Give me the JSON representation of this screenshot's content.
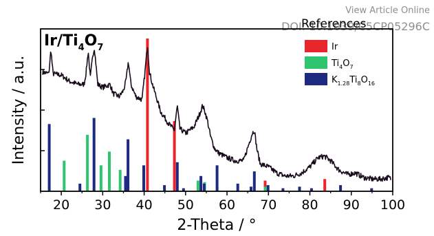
{
  "watermark": {
    "line1": "View Article Online",
    "line2": "DOI: 10.1039/C5CP05296C"
  },
  "chart_data": {
    "type": "line",
    "title": "Ir/Ti4O7",
    "xlabel": "2-Theta / °",
    "ylabel": "Intensity / a.u.",
    "xlim": [
      15,
      100
    ],
    "xticks": [
      20,
      30,
      40,
      50,
      60,
      70,
      80,
      90,
      100
    ],
    "ylim": [
      0,
      1
    ],
    "grid": false,
    "legend": {
      "title": "References",
      "placement": "top-right",
      "entries": [
        {
          "name": "Ir",
          "color": "#e8262b"
        },
        {
          "name": "Ti4O7",
          "color": "#2ec56e"
        },
        {
          "name": "K1.28Ti8O16",
          "color": "#1d2a80"
        }
      ]
    },
    "pattern": {
      "name": "Ir/Ti4O7",
      "color": "#1a0a1e",
      "x": [
        15.5,
        17,
        17.5,
        18,
        20,
        22,
        24,
        25.5,
        26,
        26.5,
        27,
        27.6,
        28,
        28.8,
        30,
        31.8,
        32.5,
        34,
        35,
        35.6,
        36.2,
        36.8,
        38,
        39.5,
        40.2,
        40.8,
        41.3,
        42,
        44,
        46,
        47.3,
        48,
        48.6,
        50,
        52,
        53.3,
        54.1,
        54.7,
        55.3,
        56,
        57,
        58,
        60,
        62,
        64,
        66.1,
        66.6,
        67.2,
        68,
        70,
        72,
        74,
        76,
        78,
        80,
        82,
        83.5,
        85,
        87,
        89,
        91,
        93,
        95,
        97,
        99,
        99.6
      ],
      "y": [
        0.78,
        0.77,
        0.93,
        0.77,
        0.76,
        0.72,
        0.7,
        0.7,
        0.78,
        0.92,
        0.74,
        0.89,
        0.94,
        0.7,
        0.68,
        0.7,
        0.64,
        0.62,
        0.66,
        0.72,
        0.85,
        0.7,
        0.62,
        0.6,
        0.78,
        0.96,
        0.78,
        0.7,
        0.52,
        0.44,
        0.4,
        0.56,
        0.41,
        0.38,
        0.42,
        0.5,
        0.56,
        0.52,
        0.46,
        0.36,
        0.28,
        0.25,
        0.22,
        0.2,
        0.2,
        0.38,
        0.4,
        0.28,
        0.18,
        0.16,
        0.12,
        0.1,
        0.1,
        0.12,
        0.16,
        0.22,
        0.23,
        0.2,
        0.14,
        0.11,
        0.12,
        0.09,
        0.08,
        0.08,
        0.09,
        0.08
      ]
    },
    "reference_series": [
      {
        "name": "Ir",
        "color": "#e8262b",
        "x": [
          40.8,
          47.3,
          69.2,
          83.6
        ],
        "y": [
          1.0,
          0.46,
          0.07,
          0.08
        ]
      },
      {
        "name": "Ti4O7",
        "color": "#2ec56e",
        "x": [
          20.7,
          26.3,
          29.6,
          31.6,
          34.2,
          53.0,
          54.6,
          69.2
        ],
        "y": [
          0.2,
          0.37,
          0.17,
          0.26,
          0.14,
          0.07,
          0.06,
          0.03
        ]
      },
      {
        "name": "K1.28Ti8O16",
        "color": "#1d2a80",
        "x": [
          17.1,
          24.5,
          27.9,
          35.5,
          36.1,
          39.9,
          44.9,
          48.0,
          49.5,
          53.7,
          54.5,
          57.6,
          62.6,
          65.8,
          66.6,
          69.9,
          73.5,
          77.5,
          80.4,
          87.4,
          94.9
        ],
        "y": [
          0.44,
          0.05,
          0.48,
          0.1,
          0.34,
          0.17,
          0.04,
          0.19,
          0.02,
          0.1,
          0.05,
          0.17,
          0.05,
          0.03,
          0.13,
          0.04,
          0.02,
          0.03,
          0.02,
          0.04,
          0.02
        ]
      }
    ]
  }
}
